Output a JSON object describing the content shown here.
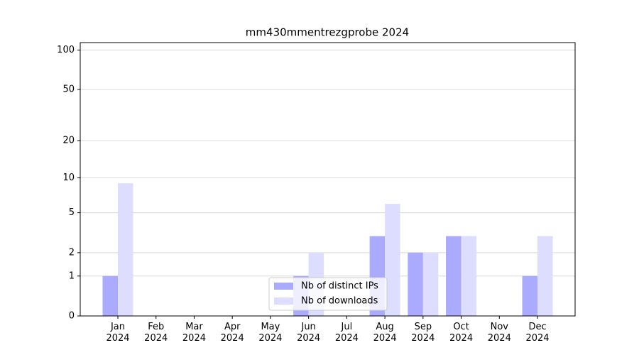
{
  "chart_data": {
    "type": "bar",
    "title": "mm430mmentrezgprobe 2024",
    "categories": [
      "Jan 2024",
      "Feb 2024",
      "Mar 2024",
      "Apr 2024",
      "May 2024",
      "Jun 2024",
      "Jul 2024",
      "Aug 2024",
      "Sep 2024",
      "Oct 2024",
      "Nov 2024",
      "Dec 2024"
    ],
    "series": [
      {
        "name": "Nb of distinct IPs",
        "color": "#aaaaff",
        "values": [
          1,
          0,
          0,
          0,
          0,
          1,
          0,
          3,
          2,
          3,
          0,
          1
        ]
      },
      {
        "name": "Nb of downloads",
        "color": "#ddddff",
        "values": [
          9,
          0,
          0,
          0,
          0,
          2,
          0,
          6,
          2,
          3,
          0,
          3
        ]
      }
    ],
    "yscale": "log1p",
    "ylim": [
      0,
      114
    ],
    "yticks": [
      0,
      1,
      2,
      5,
      10,
      20,
      50,
      100
    ],
    "grid": true,
    "legend": "lower center"
  }
}
